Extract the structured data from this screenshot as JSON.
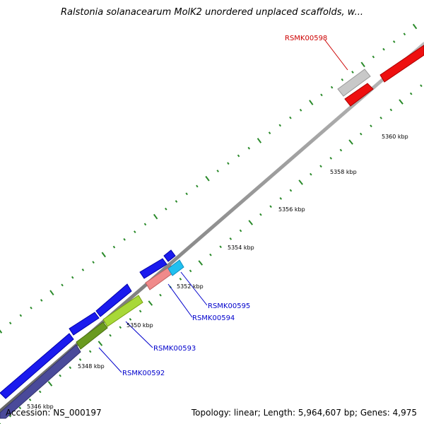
{
  "title": "Ralstonia solanacearum MolK2 unordered unplaced scaffolds, w...",
  "footer": {
    "accession": "Accession: NS_000197",
    "summary": "Topology: linear; Length: 5,964,607 bp; Genes: 4,975"
  },
  "colors": {
    "backbone": "#888888",
    "tick": "#2a8a2a",
    "label_blue": "#0000cc",
    "label_red": "#cc0000"
  },
  "ticks": [
    {
      "label": "5346 kbp"
    },
    {
      "label": "5348 kbp"
    },
    {
      "label": "5350 kbp"
    },
    {
      "label": "5352 kbp"
    },
    {
      "label": "5354 kbp"
    },
    {
      "label": "5356 kbp"
    },
    {
      "label": "5358 kbp"
    },
    {
      "label": "5360 kbp"
    }
  ],
  "genes": [
    {
      "label": "RSMK00592",
      "color": "blue"
    },
    {
      "label": "RSMK00593",
      "color": "blue"
    },
    {
      "label": "RSMK00594",
      "color": "blue"
    },
    {
      "label": "RSMK00595",
      "color": "blue"
    },
    {
      "label": "RSMK00598",
      "color": "red"
    }
  ]
}
